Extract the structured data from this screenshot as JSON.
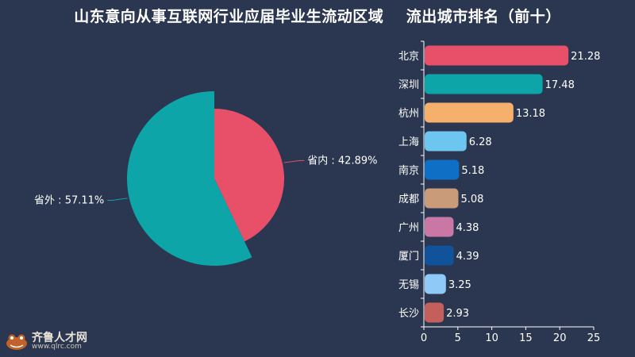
{
  "title": "山东意向从事互联网行业应届毕业生流动区域    流出城市排名（前十）",
  "pie": {
    "slices": [
      {
        "name": "省内",
        "value": 42.89,
        "label": "省内 : 42.89%",
        "color": "#e8506a"
      },
      {
        "name": "省外",
        "value": 57.11,
        "label": "省外 : 57.11%",
        "color": "#0ea5a8"
      }
    ]
  },
  "chart_data": [
    {
      "type": "pie",
      "categories": [
        "省内",
        "省外"
      ],
      "values": [
        42.89,
        57.11
      ],
      "labels": [
        "省内 : 42.89%",
        "省外 : 57.11%"
      ],
      "title": ""
    },
    {
      "type": "bar",
      "orientation": "horizontal",
      "categories": [
        "北京",
        "深圳",
        "杭州",
        "上海",
        "南京",
        "成都",
        "广州",
        "厦门",
        "无锡",
        "长沙"
      ],
      "values": [
        21.28,
        17.48,
        13.18,
        6.28,
        5.18,
        5.08,
        4.38,
        4.39,
        3.25,
        2.93
      ],
      "value_labels": [
        "21.28",
        "17.48",
        "13.18",
        "6.28",
        "5.18",
        "5.08",
        "4.38",
        "4.39",
        "3.25",
        "2.93"
      ],
      "colors": [
        "#e8506a",
        "#0ea5a8",
        "#f7b06c",
        "#6cc6f0",
        "#0e6fc4",
        "#c99b78",
        "#c978a6",
        "#11539b",
        "#8fc9f7",
        "#c4605c"
      ],
      "xlim": [
        0,
        25
      ],
      "xticks": [
        "0",
        "5",
        "10",
        "15",
        "20",
        "25"
      ],
      "grid": false
    }
  ],
  "logo": {
    "name": "齐鲁人才网",
    "url": "www.qlrc.com"
  }
}
